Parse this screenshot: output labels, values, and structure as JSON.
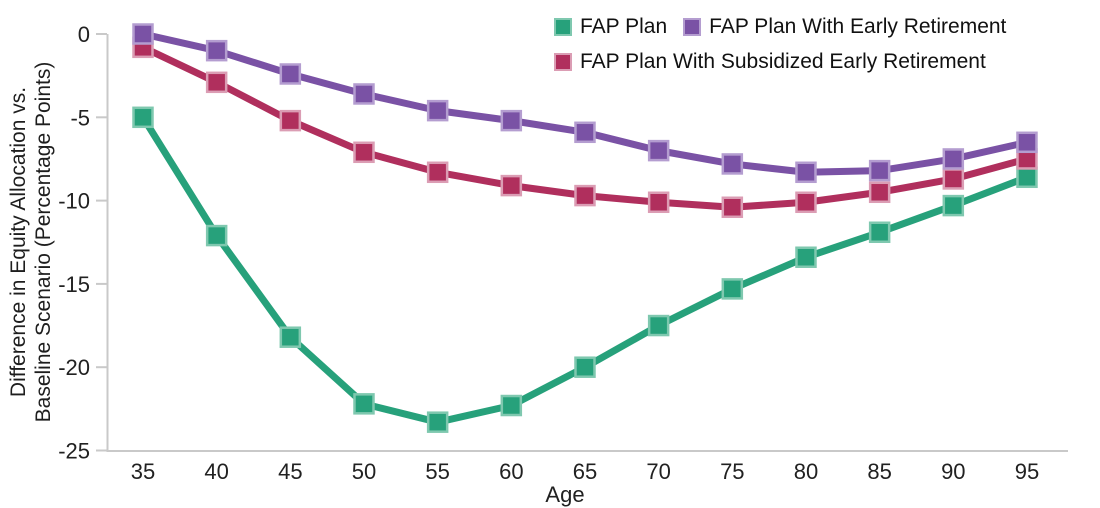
{
  "chart_data": {
    "type": "line",
    "x": [
      35,
      40,
      45,
      50,
      55,
      60,
      65,
      70,
      75,
      80,
      85,
      90,
      95
    ],
    "xlabel": "Age",
    "ylabel_line1": "Difference in Equity Allocation vs.",
    "ylabel_line2": "Baseline Scenario (Percentage Points)",
    "ylim": [
      -25,
      0
    ],
    "yticks": [
      0,
      -5,
      -10,
      -15,
      -20,
      -25
    ],
    "grid": false,
    "legend_position": "top-right",
    "series": [
      {
        "name": "FAP Plan",
        "color": "#27A17B",
        "edge": "#7FC8AF",
        "zorder": 1,
        "values": [
          -5.0,
          -12.1,
          -18.2,
          -22.2,
          -23.3,
          -22.3,
          -20.0,
          -17.5,
          -15.3,
          -13.4,
          -11.9,
          -10.3,
          -8.6
        ]
      },
      {
        "name": "FAP Plan With Early Retirement",
        "color": "#7A52A5",
        "edge": "#B49DD0",
        "zorder": 3,
        "values": [
          0.0,
          -1.0,
          -2.4,
          -3.6,
          -4.6,
          -5.2,
          -5.9,
          -7.0,
          -7.8,
          -8.3,
          -8.2,
          -7.5,
          -6.5
        ]
      },
      {
        "name": "FAP Plan With Subsidized Early Retirement",
        "color": "#B02F5D",
        "edge": "#DB9DB4",
        "zorder": 2,
        "values": [
          -0.8,
          -2.9,
          -5.2,
          -7.1,
          -8.3,
          -9.1,
          -9.7,
          -10.1,
          -10.4,
          -10.1,
          -9.5,
          -8.7,
          -7.5
        ]
      }
    ],
    "colors": {
      "axis_line": "#C9C9C9",
      "tick_label": "#212121",
      "legend_text": "#111111"
    }
  }
}
